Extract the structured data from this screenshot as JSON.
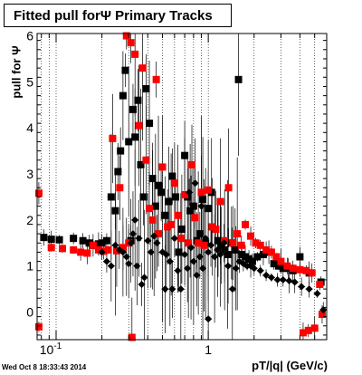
{
  "chart_data": {
    "type": "scatter",
    "title": "Fitted pull forΨ   Primary Tracks",
    "xlabel": "pT/|q| (GeV/c)",
    "ylabel": "pull for Ψ",
    "xscale": "log",
    "xlim": [
      0.075,
      6.0
    ],
    "ylim": [
      -0.6,
      6.05
    ],
    "grid": true,
    "x_tick_labels": [
      {
        "value": 0.1,
        "label": "10",
        "sup": "-1"
      },
      {
        "value": 1,
        "label": "1",
        "sup": ""
      }
    ],
    "y_tick_labels": [
      "0",
      "1",
      "2",
      "3",
      "4",
      "5",
      "6"
    ],
    "series": [
      {
        "color": "#000000",
        "marker": "square",
        "points": [
          {
            "x": 0.083,
            "y": 1.62
          },
          {
            "x": 0.093,
            "y": 1.58
          },
          {
            "x": 0.105,
            "y": 1.57
          },
          {
            "x": 0.13,
            "y": 1.6
          },
          {
            "x": 0.15,
            "y": 1.55
          },
          {
            "x": 0.165,
            "y": 1.5
          },
          {
            "x": 0.175,
            "y": 1.45
          },
          {
            "x": 0.19,
            "y": 1.48
          },
          {
            "x": 0.2,
            "y": 1.5
          },
          {
            "x": 0.215,
            "y": 1.55
          },
          {
            "x": 0.23,
            "y": 2.5
          },
          {
            "x": 0.245,
            "y": 2.2
          },
          {
            "x": 0.255,
            "y": 3.05
          },
          {
            "x": 0.265,
            "y": 3.5
          },
          {
            "x": 0.275,
            "y": 4.7
          },
          {
            "x": 0.285,
            "y": 5.25
          },
          {
            "x": 0.3,
            "y": 3.7
          },
          {
            "x": 0.31,
            "y": 1.55
          },
          {
            "x": 0.32,
            "y": 4.4
          },
          {
            "x": 0.33,
            "y": 3.8
          },
          {
            "x": 0.345,
            "y": 4.6
          },
          {
            "x": 0.36,
            "y": 3.2
          },
          {
            "x": 0.375,
            "y": 2.5
          },
          {
            "x": 0.39,
            "y": 4.85
          },
          {
            "x": 0.41,
            "y": 4.1
          },
          {
            "x": 0.43,
            "y": 2.9
          },
          {
            "x": 0.45,
            "y": 2.3
          },
          {
            "x": 0.47,
            "y": 2.75
          },
          {
            "x": 0.49,
            "y": 2.6
          },
          {
            "x": 0.52,
            "y": 2.1
          },
          {
            "x": 0.55,
            "y": 2.4
          },
          {
            "x": 0.58,
            "y": 2.95
          },
          {
            "x": 0.61,
            "y": 2.5
          },
          {
            "x": 0.64,
            "y": 1.3
          },
          {
            "x": 0.67,
            "y": 1.8
          },
          {
            "x": 0.7,
            "y": 3.4
          },
          {
            "x": 0.73,
            "y": 2.5
          },
          {
            "x": 0.76,
            "y": 2.2
          },
          {
            "x": 0.8,
            "y": 2.3
          },
          {
            "x": 0.84,
            "y": 1.55
          },
          {
            "x": 0.88,
            "y": 1.7
          },
          {
            "x": 0.92,
            "y": 2.45
          },
          {
            "x": 0.96,
            "y": 1.5
          },
          {
            "x": 1.0,
            "y": 2.25
          },
          {
            "x": 1.05,
            "y": 2.6
          },
          {
            "x": 1.1,
            "y": 1.8
          },
          {
            "x": 1.16,
            "y": 1.55
          },
          {
            "x": 1.22,
            "y": 1.45
          },
          {
            "x": 1.28,
            "y": 1.35
          },
          {
            "x": 1.34,
            "y": 1.25
          },
          {
            "x": 1.42,
            "y": 1.5
          },
          {
            "x": 1.5,
            "y": 1.35
          },
          {
            "x": 1.58,
            "y": 5.05
          },
          {
            "x": 1.66,
            "y": 1.25
          },
          {
            "x": 1.75,
            "y": 1.2
          },
          {
            "x": 1.85,
            "y": 1.15
          },
          {
            "x": 1.95,
            "y": 1.1
          },
          {
            "x": 2.1,
            "y": 1.2
          },
          {
            "x": 2.3,
            "y": 1.25
          },
          {
            "x": 2.5,
            "y": 1.3
          },
          {
            "x": 2.7,
            "y": 1.05
          },
          {
            "x": 2.9,
            "y": 1.0
          },
          {
            "x": 3.1,
            "y": 0.95
          },
          {
            "x": 3.35,
            "y": 0.95
          },
          {
            "x": 3.6,
            "y": 0.9
          },
          {
            "x": 4.0,
            "y": 1.2
          },
          {
            "x": 4.6,
            "y": 0.85
          },
          {
            "x": 5.5,
            "y": 0.65
          }
        ]
      },
      {
        "color": "#ff0000",
        "marker": "square",
        "points": [
          {
            "x": 0.077,
            "y": 2.58
          },
          {
            "x": 0.077,
            "y": -0.32
          },
          {
            "x": 0.093,
            "y": 1.4
          },
          {
            "x": 0.11,
            "y": 1.38
          },
          {
            "x": 0.13,
            "y": 1.35
          },
          {
            "x": 0.145,
            "y": 1.3
          },
          {
            "x": 0.16,
            "y": 1.28
          },
          {
            "x": 0.175,
            "y": 1.45
          },
          {
            "x": 0.19,
            "y": 1.35
          },
          {
            "x": 0.205,
            "y": 1.32
          },
          {
            "x": 0.22,
            "y": 1.35
          },
          {
            "x": 0.235,
            "y": 3.77
          },
          {
            "x": 0.25,
            "y": 1.33
          },
          {
            "x": 0.262,
            "y": 2.7
          },
          {
            "x": 0.275,
            "y": 1.4
          },
          {
            "x": 0.29,
            "y": 6.0
          },
          {
            "x": 0.3,
            "y": 1.5
          },
          {
            "x": 0.31,
            "y": 5.85
          },
          {
            "x": 0.315,
            "y": -0.55
          },
          {
            "x": 0.33,
            "y": 5.6
          },
          {
            "x": 0.35,
            "y": 4.05
          },
          {
            "x": 0.37,
            "y": 5.3
          },
          {
            "x": 0.39,
            "y": 3.3
          },
          {
            "x": 0.41,
            "y": 2.25
          },
          {
            "x": 0.43,
            "y": 2.0
          },
          {
            "x": 0.455,
            "y": 5.05
          },
          {
            "x": 0.47,
            "y": 1.7
          },
          {
            "x": 0.5,
            "y": 3.15
          },
          {
            "x": 0.54,
            "y": 1.85
          },
          {
            "x": 0.57,
            "y": 1.9
          },
          {
            "x": 0.6,
            "y": 2.8
          },
          {
            "x": 0.63,
            "y": 2.1
          },
          {
            "x": 0.66,
            "y": 1.6
          },
          {
            "x": 0.7,
            "y": 2.55
          },
          {
            "x": 0.74,
            "y": 1.5
          },
          {
            "x": 0.78,
            "y": 3.2
          },
          {
            "x": 0.82,
            "y": 2.05
          },
          {
            "x": 0.86,
            "y": 1.5
          },
          {
            "x": 0.9,
            "y": 2.6
          },
          {
            "x": 0.94,
            "y": 1.45
          },
          {
            "x": 1.0,
            "y": 2.65
          },
          {
            "x": 1.06,
            "y": 1.85
          },
          {
            "x": 1.12,
            "y": 1.8
          },
          {
            "x": 1.2,
            "y": 2.4
          },
          {
            "x": 1.28,
            "y": 1.55
          },
          {
            "x": 1.36,
            "y": 2.7
          },
          {
            "x": 1.45,
            "y": 1.5
          },
          {
            "x": 1.55,
            "y": 1.7
          },
          {
            "x": 1.65,
            "y": 1.45
          },
          {
            "x": 1.75,
            "y": 1.9
          },
          {
            "x": 1.9,
            "y": 1.65
          },
          {
            "x": 2.05,
            "y": 1.5
          },
          {
            "x": 2.2,
            "y": 1.45
          },
          {
            "x": 2.4,
            "y": 1.35
          },
          {
            "x": 2.6,
            "y": 1.3
          },
          {
            "x": 2.8,
            "y": 1.2
          },
          {
            "x": 3.0,
            "y": 1.1
          },
          {
            "x": 3.3,
            "y": 1.0
          },
          {
            "x": 3.6,
            "y": 0.95
          },
          {
            "x": 4.0,
            "y": 0.92
          },
          {
            "x": 4.4,
            "y": 0.9
          },
          {
            "x": 4.8,
            "y": 0.85
          },
          {
            "x": 5.4,
            "y": 0.6
          },
          {
            "x": 4.2,
            "y": -0.45
          },
          {
            "x": 4.55,
            "y": -0.4
          },
          {
            "x": 5.0,
            "y": -0.35
          },
          {
            "x": 5.6,
            "y": -0.05
          }
        ]
      },
      {
        "color": "#000000",
        "marker": "diamond",
        "points": [
          {
            "x": 0.2,
            "y": 1.3
          },
          {
            "x": 0.215,
            "y": 1.1
          },
          {
            "x": 0.23,
            "y": 1.0
          },
          {
            "x": 0.245,
            "y": 1.45
          },
          {
            "x": 0.26,
            "y": 1.35
          },
          {
            "x": 0.275,
            "y": 1.3
          },
          {
            "x": 0.29,
            "y": 1.2
          },
          {
            "x": 0.3,
            "y": 1.05
          },
          {
            "x": 0.31,
            "y": 1.5
          },
          {
            "x": 0.32,
            "y": 1.7
          },
          {
            "x": 0.33,
            "y": 2.0
          },
          {
            "x": 0.34,
            "y": 1.0
          },
          {
            "x": 0.35,
            "y": 1.6
          },
          {
            "x": 0.365,
            "y": 0.6
          },
          {
            "x": 0.38,
            "y": 0.75
          },
          {
            "x": 0.4,
            "y": 1.55
          },
          {
            "x": 0.42,
            "y": 1.3
          },
          {
            "x": 0.44,
            "y": 1.65
          },
          {
            "x": 0.46,
            "y": 1.5
          },
          {
            "x": 0.5,
            "y": 1.3
          },
          {
            "x": 0.53,
            "y": 1.25
          },
          {
            "x": 0.56,
            "y": 1.1
          },
          {
            "x": 0.6,
            "y": 1.6
          },
          {
            "x": 0.63,
            "y": 0.9
          },
          {
            "x": 0.66,
            "y": 0.5
          },
          {
            "x": 0.7,
            "y": 1.25
          },
          {
            "x": 0.73,
            "y": 0.95
          },
          {
            "x": 0.77,
            "y": 1.4
          },
          {
            "x": 0.8,
            "y": 1.1
          },
          {
            "x": 0.84,
            "y": 0.8
          },
          {
            "x": 0.88,
            "y": 1.2
          },
          {
            "x": 0.92,
            "y": 0.95
          },
          {
            "x": 0.96,
            "y": 1.6
          },
          {
            "x": 1.0,
            "y": 1.3
          },
          {
            "x": 1.04,
            "y": 1.45
          },
          {
            "x": 1.1,
            "y": 1.2
          },
          {
            "x": 1.15,
            "y": 1.35
          },
          {
            "x": 1.2,
            "y": 1.25
          },
          {
            "x": 1.27,
            "y": 1.5
          },
          {
            "x": 1.35,
            "y": 1.0
          },
          {
            "x": 1.44,
            "y": 0.5
          },
          {
            "x": 1.52,
            "y": 0.95
          },
          {
            "x": 1.6,
            "y": 1.1
          },
          {
            "x": 1.7,
            "y": 1.05
          },
          {
            "x": 1.8,
            "y": 1.0
          },
          {
            "x": 1.9,
            "y": 1.0
          },
          {
            "x": 2.0,
            "y": 0.95
          },
          {
            "x": 2.2,
            "y": 0.9
          },
          {
            "x": 2.4,
            "y": 0.8
          },
          {
            "x": 2.6,
            "y": 0.75
          },
          {
            "x": 2.85,
            "y": 0.7
          },
          {
            "x": 3.1,
            "y": 0.7
          },
          {
            "x": 3.4,
            "y": 0.68
          },
          {
            "x": 3.7,
            "y": 0.65
          },
          {
            "x": 4.1,
            "y": 0.55
          },
          {
            "x": 4.6,
            "y": 0.5
          },
          {
            "x": 5.2,
            "y": 0.4
          },
          {
            "x": 5.7,
            "y": 0.05
          },
          {
            "x": 0.52,
            "y": 0.5
          },
          {
            "x": 0.58,
            "y": 0.5
          },
          {
            "x": 1.0,
            "y": -0.15
          },
          {
            "x": 0.9,
            "y": 2.3
          },
          {
            "x": 0.82,
            "y": 2.8
          },
          {
            "x": 0.75,
            "y": 2.6
          }
        ]
      }
    ]
  },
  "timestamp": "Wed Oct  8 18:33:43 2014"
}
